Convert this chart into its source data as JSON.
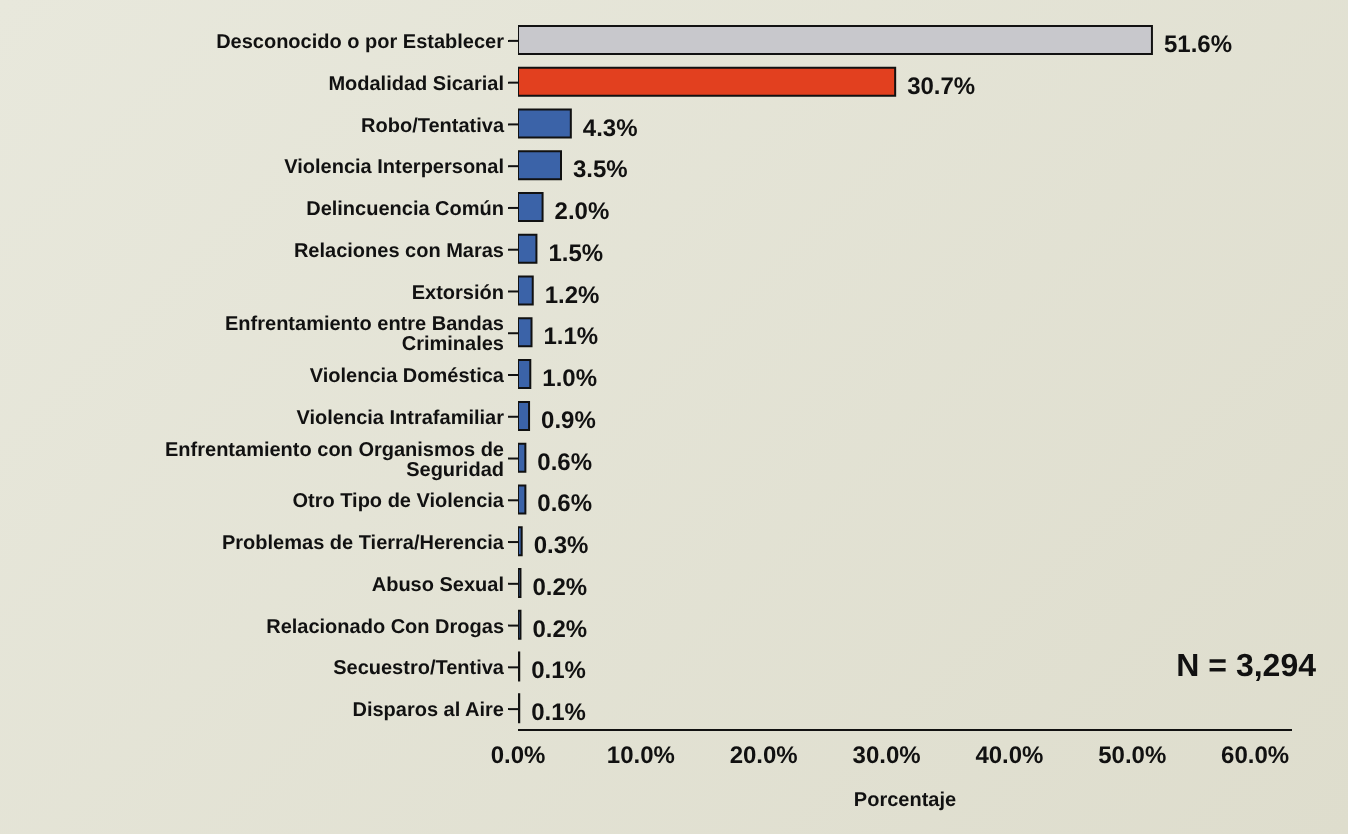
{
  "chart_data": {
    "type": "bar",
    "orientation": "horizontal",
    "xlabel": "Porcentaje",
    "categories": [
      "Desconocido o por Establecer",
      "Modalidad Sicarial",
      "Robo/Tentativa",
      "Violencia Interpersonal",
      "Delincuencia Común",
      "Relaciones con Maras",
      "Extorsión",
      "Enfrentamiento entre Bandas Criminales",
      "Violencia Doméstica",
      "Violencia Intrafamiliar",
      "Enfrentamiento con Organismos de Seguridad",
      "Otro Tipo de Violencia",
      "Problemas de Tierra/Herencia",
      "Abuso Sexual",
      "Relacionado Con Drogas",
      "Secuestro/Tentiva",
      "Disparos al Aire"
    ],
    "values": [
      51.6,
      30.7,
      4.3,
      3.5,
      2.0,
      1.5,
      1.2,
      1.1,
      1.0,
      0.9,
      0.6,
      0.6,
      0.3,
      0.2,
      0.2,
      0.1,
      0.1
    ],
    "colors": [
      "#c8c8cc",
      "#e2401f",
      "#3b63a8",
      "#3b63a8",
      "#3b63a8",
      "#3b63a8",
      "#3b63a8",
      "#3b63a8",
      "#3b63a8",
      "#3b63a8",
      "#3b63a8",
      "#3b63a8",
      "#3b63a8",
      "#3b63a8",
      "#3b63a8",
      "#3b63a8",
      "#3b63a8"
    ],
    "value_labels": [
      "51.6%",
      "30.7%",
      "4.3%",
      "3.5%",
      "2.0%",
      "1.5%",
      "1.2%",
      "1.1%",
      "1.0%",
      "0.9%",
      "0.6%",
      "0.6%",
      "0.3%",
      "0.2%",
      "0.2%",
      "0.1%",
      "0.1%"
    ],
    "xlim": [
      0,
      63
    ],
    "xticks": [
      {
        "value": 0,
        "label": "0.0%"
      },
      {
        "value": 10,
        "label": "10.0%"
      },
      {
        "value": 20,
        "label": "20.0%"
      },
      {
        "value": 30,
        "label": "30.0%"
      },
      {
        "value": 40,
        "label": "40.0%"
      },
      {
        "value": 50,
        "label": "50.0%"
      },
      {
        "value": 60,
        "label": "60.0%"
      }
    ],
    "annotations": [
      "N = 3,294"
    ],
    "grid": false,
    "legend": false
  }
}
